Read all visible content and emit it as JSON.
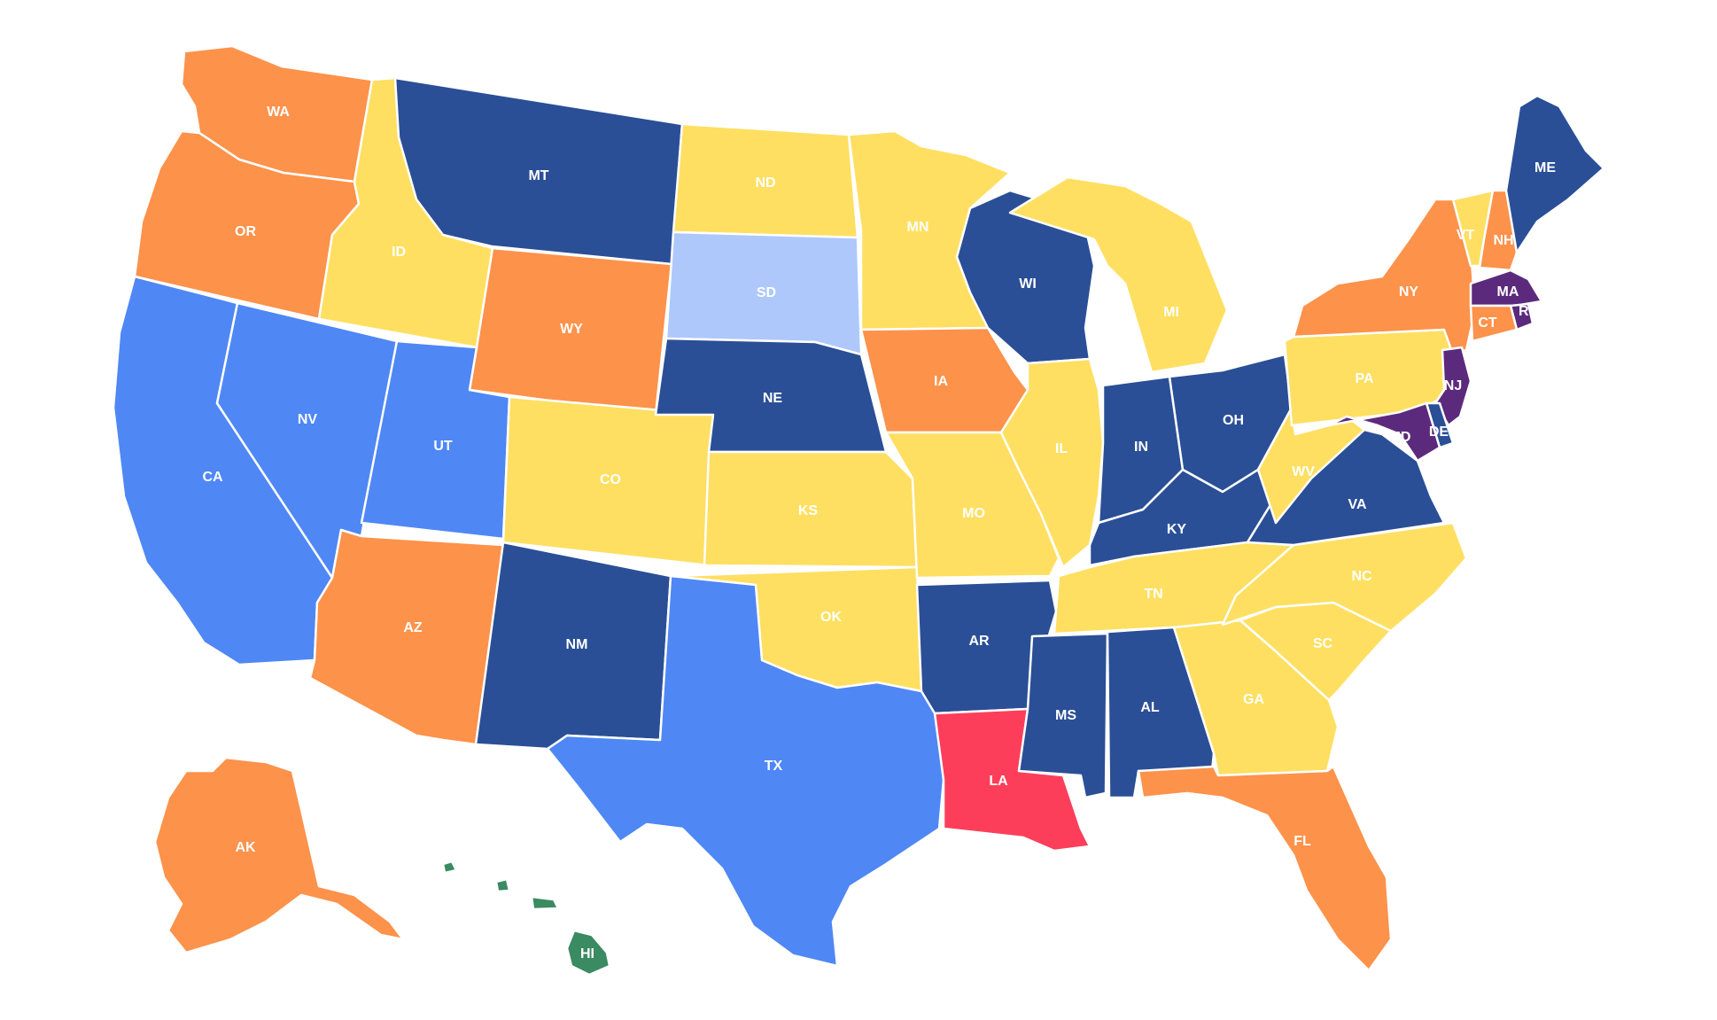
{
  "legend_colors": {
    "dark_blue": "#2a4f96",
    "blue": "#4f87f5",
    "light_blue": "#aec8fb",
    "yellow": "#fedf61",
    "orange": "#fd924b",
    "purple": "#5c2a7d",
    "red": "#fd3e5b",
    "green": "#3a8a62"
  },
  "states": {
    "WA": {
      "label": "WA",
      "color": "#fd924b"
    },
    "OR": {
      "label": "OR",
      "color": "#fd924b"
    },
    "CA": {
      "label": "CA",
      "color": "#4f87f5"
    },
    "NV": {
      "label": "NV",
      "color": "#4f87f5"
    },
    "ID": {
      "label": "ID",
      "color": "#fedf61"
    },
    "MT": {
      "label": "MT",
      "color": "#2a4f96"
    },
    "WY": {
      "label": "WY",
      "color": "#fd924b"
    },
    "UT": {
      "label": "UT",
      "color": "#4f87f5"
    },
    "AZ": {
      "label": "AZ",
      "color": "#fd924b"
    },
    "CO": {
      "label": "CO",
      "color": "#fedf61"
    },
    "NM": {
      "label": "NM",
      "color": "#2a4f96"
    },
    "ND": {
      "label": "ND",
      "color": "#fedf61"
    },
    "SD": {
      "label": "SD",
      "color": "#aec8fb"
    },
    "NE": {
      "label": "NE",
      "color": "#2a4f96"
    },
    "KS": {
      "label": "KS",
      "color": "#fedf61"
    },
    "OK": {
      "label": "OK",
      "color": "#fedf61"
    },
    "TX": {
      "label": "TX",
      "color": "#4f87f5"
    },
    "MN": {
      "label": "MN",
      "color": "#fedf61"
    },
    "IA": {
      "label": "IA",
      "color": "#fd924b"
    },
    "MO": {
      "label": "MO",
      "color": "#fedf61"
    },
    "AR": {
      "label": "AR",
      "color": "#2a4f96"
    },
    "LA": {
      "label": "LA",
      "color": "#fd3e5b"
    },
    "WI": {
      "label": "WI",
      "color": "#2a4f96"
    },
    "IL": {
      "label": "IL",
      "color": "#fedf61"
    },
    "MI": {
      "label": "MI",
      "color": "#fedf61"
    },
    "IN": {
      "label": "IN",
      "color": "#2a4f96"
    },
    "OH": {
      "label": "OH",
      "color": "#2a4f96"
    },
    "KY": {
      "label": "KY",
      "color": "#2a4f96"
    },
    "TN": {
      "label": "TN",
      "color": "#fedf61"
    },
    "MS": {
      "label": "MS",
      "color": "#2a4f96"
    },
    "AL": {
      "label": "AL",
      "color": "#2a4f96"
    },
    "GA": {
      "label": "GA",
      "color": "#fedf61"
    },
    "FL": {
      "label": "FL",
      "color": "#fd924b"
    },
    "SC": {
      "label": "SC",
      "color": "#fedf61"
    },
    "NC": {
      "label": "NC",
      "color": "#fedf61"
    },
    "VA": {
      "label": "VA",
      "color": "#2a4f96"
    },
    "WV": {
      "label": "WV",
      "color": "#fedf61"
    },
    "PA": {
      "label": "PA",
      "color": "#fedf61"
    },
    "NY": {
      "label": "NY",
      "color": "#fd924b"
    },
    "VT": {
      "label": "VT",
      "color": "#fedf61"
    },
    "NH": {
      "label": "NH",
      "color": "#fd924b"
    },
    "ME": {
      "label": "ME",
      "color": "#2a4f96"
    },
    "MA": {
      "label": "MA",
      "color": "#5c2a7d"
    },
    "RI": {
      "label": "RI",
      "color": "#5c2a7d"
    },
    "CT": {
      "label": "CT",
      "color": "#fd924b"
    },
    "NJ": {
      "label": "NJ",
      "color": "#5c2a7d"
    },
    "DE": {
      "label": "DE",
      "color": "#2a4f96"
    },
    "MD": {
      "label": "MD",
      "color": "#5c2a7d"
    },
    "AK": {
      "label": "AK",
      "color": "#fd924b"
    },
    "HI": {
      "label": "HI",
      "color": "#3a8a62"
    }
  }
}
